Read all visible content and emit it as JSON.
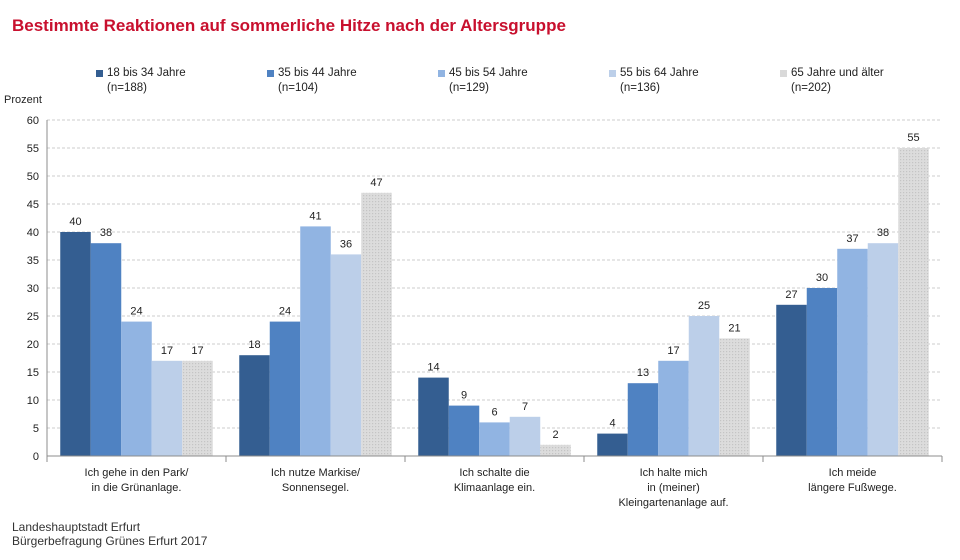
{
  "chart_data": {
    "type": "bar",
    "title": "Bestimmte Reaktionen auf sommerliche Hitze nach der Altersgruppe",
    "ylabel": "Prozent",
    "ylim": [
      0,
      60
    ],
    "yticks": [
      0,
      5,
      10,
      15,
      20,
      25,
      30,
      35,
      40,
      45,
      50,
      55,
      60
    ],
    "grid": true,
    "legend_position": "top",
    "categories": [
      [
        "Ich gehe in den Park/",
        "in die Grünanlage."
      ],
      [
        "Ich nutze Markise/",
        "Sonnensegel."
      ],
      [
        "Ich schalte die",
        "Klimaanlage ein."
      ],
      [
        "Ich halte mich",
        "in (meiner)",
        "Kleingartenanlage auf."
      ],
      [
        "Ich meide",
        "längere Fußwege."
      ]
    ],
    "series": [
      {
        "name": "18 bis 34 Jahre",
        "n": "(n=188)",
        "color": "#345e91",
        "values": [
          40,
          18,
          14,
          4,
          27
        ],
        "labels": [
          "40",
          "18",
          "14",
          "4",
          "27"
        ]
      },
      {
        "name": "35 bis 44 Jahre",
        "n": "(n=104)",
        "color": "#4f82c2",
        "values": [
          38,
          24,
          9,
          13,
          30
        ],
        "labels": [
          "38",
          "24",
          "9",
          "13",
          "30"
        ]
      },
      {
        "name": "45 bis 54 Jahre",
        "n": "(n=129)",
        "color": "#91b4e2",
        "values": [
          24,
          41,
          6,
          17,
          37
        ],
        "labels": [
          "24",
          "41",
          "6",
          "17",
          "37"
        ]
      },
      {
        "name": "55 bis 64 Jahre",
        "n": "(n=136)",
        "color": "#bccfe9",
        "values": [
          17,
          36,
          7,
          25,
          38
        ],
        "labels": [
          "17",
          "36",
          "7",
          "25",
          "38"
        ]
      },
      {
        "name": "65 Jahre und älter",
        "n": "(n=202)",
        "color": "#d9d9d9",
        "values": [
          17,
          47,
          2,
          21,
          55
        ],
        "labels": [
          "17",
          "47",
          "2",
          "21",
          "55"
        ]
      }
    ]
  },
  "footer": {
    "line1": "Landeshauptstadt Erfurt",
    "line2": "Bürgerbefragung Grünes Erfurt 2017"
  }
}
